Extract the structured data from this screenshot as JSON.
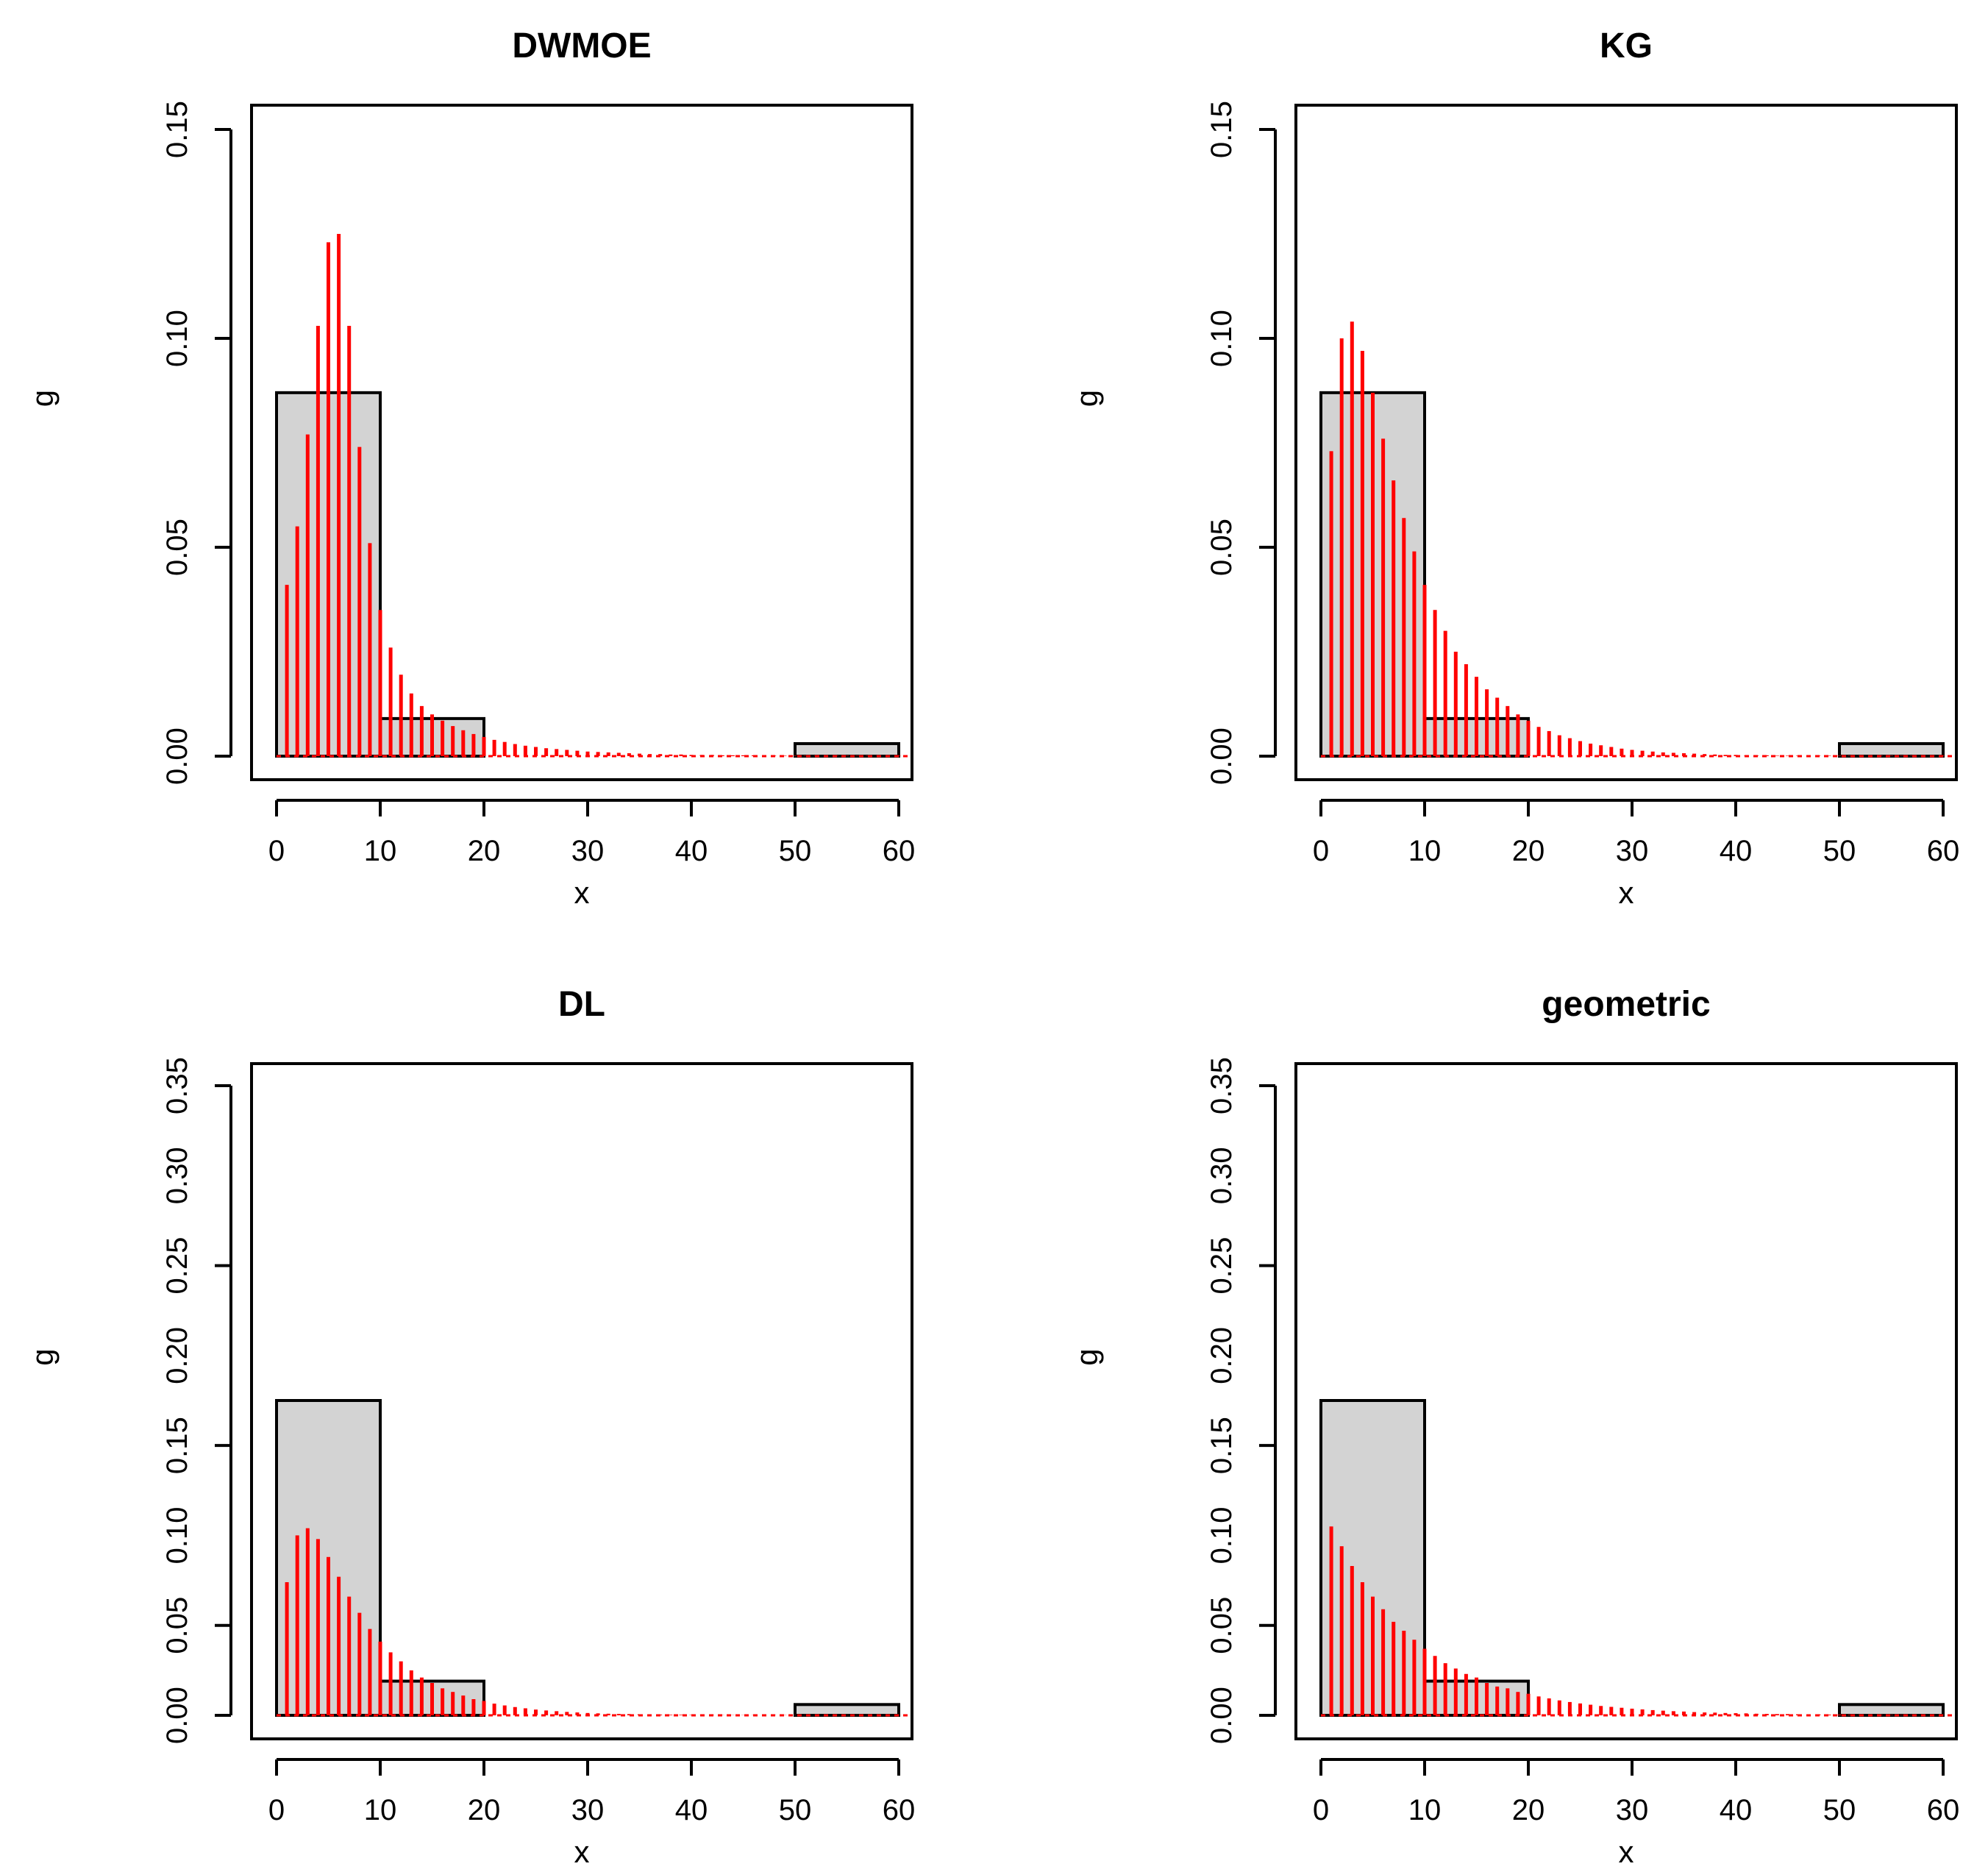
{
  "chart_data": [
    {
      "type": "bar",
      "title": "DWMOE",
      "xlabel": "x",
      "ylabel": "g",
      "xlim": [
        0,
        60
      ],
      "ylim": [
        0,
        0.15
      ],
      "xticks": [
        "0",
        "10",
        "20",
        "30",
        "40",
        "50",
        "60"
      ],
      "yticks": [
        "0.00",
        "0.05",
        "0.10",
        "0.15"
      ],
      "histogram": {
        "series_name": "observed histogram",
        "bins": [
          {
            "from": 0,
            "to": 10,
            "density": 0.087
          },
          {
            "from": 10,
            "to": 20,
            "density": 0.009
          },
          {
            "from": 50,
            "to": 60,
            "density": 0.003
          }
        ]
      },
      "pmf": {
        "series_name": "fitted pmf",
        "x": [
          1,
          2,
          3,
          4,
          5,
          6,
          7,
          8,
          9,
          10,
          11,
          12,
          13,
          14,
          15,
          16,
          17,
          18,
          19,
          20,
          21,
          22,
          23,
          24,
          25,
          26,
          27,
          28,
          29,
          30,
          31,
          32,
          33,
          34,
          35,
          36,
          37,
          38,
          39,
          40,
          41,
          42,
          43,
          44,
          45,
          46,
          47,
          48,
          49,
          50,
          51,
          52,
          53,
          54,
          55,
          56,
          57,
          58,
          59,
          60
        ],
        "values": [
          0.041,
          0.055,
          0.077,
          0.103,
          0.123,
          0.125,
          0.103,
          0.074,
          0.051,
          0.035,
          0.026,
          0.0195,
          0.015,
          0.012,
          0.01,
          0.0085,
          0.0072,
          0.0062,
          0.0053,
          0.0046,
          0.0039,
          0.0034,
          0.0029,
          0.0025,
          0.0022,
          0.0019,
          0.0017,
          0.0015,
          0.0013,
          0.0011,
          0.001,
          0.0009,
          0.0008,
          0.0007,
          0.0006,
          0.0005,
          0.0005,
          0.0004,
          0.0004,
          0.0003,
          0.0003,
          0.0003,
          0.0002,
          0.0002,
          0.0002,
          0.0002,
          0.0001,
          0.0001,
          0.0001,
          0.0001,
          0.0001,
          0.0001,
          0.0001,
          0.0001,
          0.0001,
          0.0001,
          0.0001,
          0.0001,
          0.0001,
          0.0001
        ]
      }
    },
    {
      "type": "bar",
      "title": "KG",
      "xlabel": "x",
      "ylabel": "g",
      "xlim": [
        0,
        60
      ],
      "ylim": [
        0,
        0.15
      ],
      "xticks": [
        "0",
        "10",
        "20",
        "30",
        "40",
        "50",
        "60"
      ],
      "yticks": [
        "0.00",
        "0.05",
        "0.10",
        "0.15"
      ],
      "histogram": {
        "series_name": "observed histogram",
        "bins": [
          {
            "from": 0,
            "to": 10,
            "density": 0.087
          },
          {
            "from": 10,
            "to": 20,
            "density": 0.009
          },
          {
            "from": 50,
            "to": 60,
            "density": 0.003
          }
        ]
      },
      "pmf": {
        "series_name": "fitted pmf",
        "x": [
          1,
          2,
          3,
          4,
          5,
          6,
          7,
          8,
          9,
          10,
          11,
          12,
          13,
          14,
          15,
          16,
          17,
          18,
          19,
          20,
          21,
          22,
          23,
          24,
          25,
          26,
          27,
          28,
          29,
          30,
          31,
          32,
          33,
          34,
          35,
          36,
          37,
          38,
          39,
          40,
          41,
          42,
          43,
          44,
          45,
          46,
          47,
          48,
          49,
          50,
          51,
          52,
          53,
          54,
          55,
          56,
          57,
          58,
          59,
          60
        ],
        "values": [
          0.073,
          0.1,
          0.104,
          0.097,
          0.087,
          0.076,
          0.066,
          0.057,
          0.049,
          0.041,
          0.035,
          0.03,
          0.025,
          0.022,
          0.019,
          0.016,
          0.014,
          0.012,
          0.01,
          0.0085,
          0.007,
          0.006,
          0.005,
          0.0043,
          0.0036,
          0.003,
          0.0026,
          0.0022,
          0.0018,
          0.0015,
          0.0013,
          0.0011,
          0.0009,
          0.0008,
          0.0007,
          0.0006,
          0.0005,
          0.0004,
          0.0003,
          0.0003,
          0.0002,
          0.0002,
          0.0002,
          0.0001,
          0.0001,
          0.0001,
          0.0001,
          0.0001,
          0.0001,
          0.0001,
          0.0001,
          0.0001,
          0.0001,
          0.0001,
          0.0001,
          0.0001,
          0.0001,
          0.0001,
          0.0001,
          0.0001
        ]
      }
    },
    {
      "type": "bar",
      "title": "DL",
      "xlabel": "x",
      "ylabel": "g",
      "xlim": [
        0,
        60
      ],
      "ylim": [
        0,
        0.35
      ],
      "xticks": [
        "0",
        "10",
        "20",
        "30",
        "40",
        "50",
        "60"
      ],
      "yticks": [
        "0.00",
        "0.05",
        "0.15",
        "0.25",
        "0.35"
      ],
      "yticks_overlay": [
        "0.10",
        "0.20",
        "0.30"
      ],
      "histogram": {
        "series_name": "observed histogram",
        "bins": [
          {
            "from": 0,
            "to": 10,
            "density": 0.175
          },
          {
            "from": 10,
            "to": 20,
            "density": 0.019
          },
          {
            "from": 50,
            "to": 60,
            "density": 0.006
          }
        ]
      },
      "pmf": {
        "series_name": "fitted pmf",
        "x": [
          1,
          2,
          3,
          4,
          5,
          6,
          7,
          8,
          9,
          10,
          11,
          12,
          13,
          14,
          15,
          16,
          17,
          18,
          19,
          20,
          21,
          22,
          23,
          24,
          25,
          26,
          27,
          28,
          29,
          30,
          31,
          32,
          33,
          34,
          35,
          36,
          37,
          38,
          39,
          40,
          41,
          42,
          43,
          44,
          45,
          46,
          47,
          48,
          49,
          50,
          51,
          52,
          53,
          54,
          55,
          56,
          57,
          58,
          59,
          60
        ],
        "values": [
          0.074,
          0.1,
          0.104,
          0.098,
          0.088,
          0.077,
          0.066,
          0.057,
          0.048,
          0.041,
          0.035,
          0.03,
          0.025,
          0.021,
          0.018,
          0.015,
          0.013,
          0.011,
          0.009,
          0.008,
          0.0065,
          0.0055,
          0.0046,
          0.0039,
          0.0032,
          0.0027,
          0.0023,
          0.0019,
          0.0016,
          0.0013,
          0.0011,
          0.0009,
          0.0008,
          0.0007,
          0.0006,
          0.0005,
          0.0004,
          0.0003,
          0.0003,
          0.0002,
          0.0002,
          0.0002,
          0.0001,
          0.0001,
          0.0001,
          0.0001,
          0.0001,
          0.0001,
          0.0001,
          0.0001,
          0.0001,
          0.0001,
          0.0001,
          0.0001,
          0.0001,
          0.0001,
          0.0001,
          0.0001,
          0.0001,
          0.0001
        ]
      }
    },
    {
      "type": "bar",
      "title": "geometric",
      "xlabel": "x",
      "ylabel": "g",
      "xlim": [
        0,
        60
      ],
      "ylim": [
        0,
        0.35
      ],
      "xticks": [
        "0",
        "10",
        "20",
        "30",
        "40",
        "50",
        "60"
      ],
      "yticks": [
        "0.00",
        "0.05",
        "0.15",
        "0.25",
        "0.35"
      ],
      "yticks_overlay": [
        "0.10",
        "0.20",
        "0.30"
      ],
      "histogram": {
        "series_name": "observed histogram",
        "bins": [
          {
            "from": 0,
            "to": 10,
            "density": 0.175
          },
          {
            "from": 10,
            "to": 20,
            "density": 0.019
          },
          {
            "from": 50,
            "to": 60,
            "density": 0.006
          }
        ]
      },
      "pmf": {
        "series_name": "fitted pmf",
        "x": [
          1,
          2,
          3,
          4,
          5,
          6,
          7,
          8,
          9,
          10,
          11,
          12,
          13,
          14,
          15,
          16,
          17,
          18,
          19,
          20,
          21,
          22,
          23,
          24,
          25,
          26,
          27,
          28,
          29,
          30,
          31,
          32,
          33,
          34,
          35,
          36,
          37,
          38,
          39,
          40,
          41,
          42,
          43,
          44,
          45,
          46,
          47,
          48,
          49,
          50,
          51,
          52,
          53,
          54,
          55,
          56,
          57,
          58,
          59,
          60
        ],
        "values": [
          0.105,
          0.094,
          0.083,
          0.074,
          0.066,
          0.059,
          0.052,
          0.047,
          0.042,
          0.037,
          0.033,
          0.029,
          0.026,
          0.023,
          0.021,
          0.018,
          0.016,
          0.015,
          0.013,
          0.012,
          0.0105,
          0.0094,
          0.0083,
          0.0074,
          0.0066,
          0.0059,
          0.0052,
          0.0047,
          0.0042,
          0.0037,
          0.0033,
          0.0029,
          0.0026,
          0.0023,
          0.0021,
          0.0018,
          0.0016,
          0.0015,
          0.0013,
          0.0012,
          0.0011,
          0.0009,
          0.0008,
          0.0007,
          0.0007,
          0.0006,
          0.0005,
          0.0005,
          0.0004,
          0.0004,
          0.0003,
          0.0003,
          0.0003,
          0.0002,
          0.0002,
          0.0002,
          0.0002,
          0.0002,
          0.0001,
          0.0001
        ]
      }
    }
  ],
  "colors": {
    "histogram_fill": "#d3d3d3",
    "histogram_stroke": "#000000",
    "pmf_bar": "#ff0000",
    "axis": "#000000",
    "background": "#ffffff"
  }
}
